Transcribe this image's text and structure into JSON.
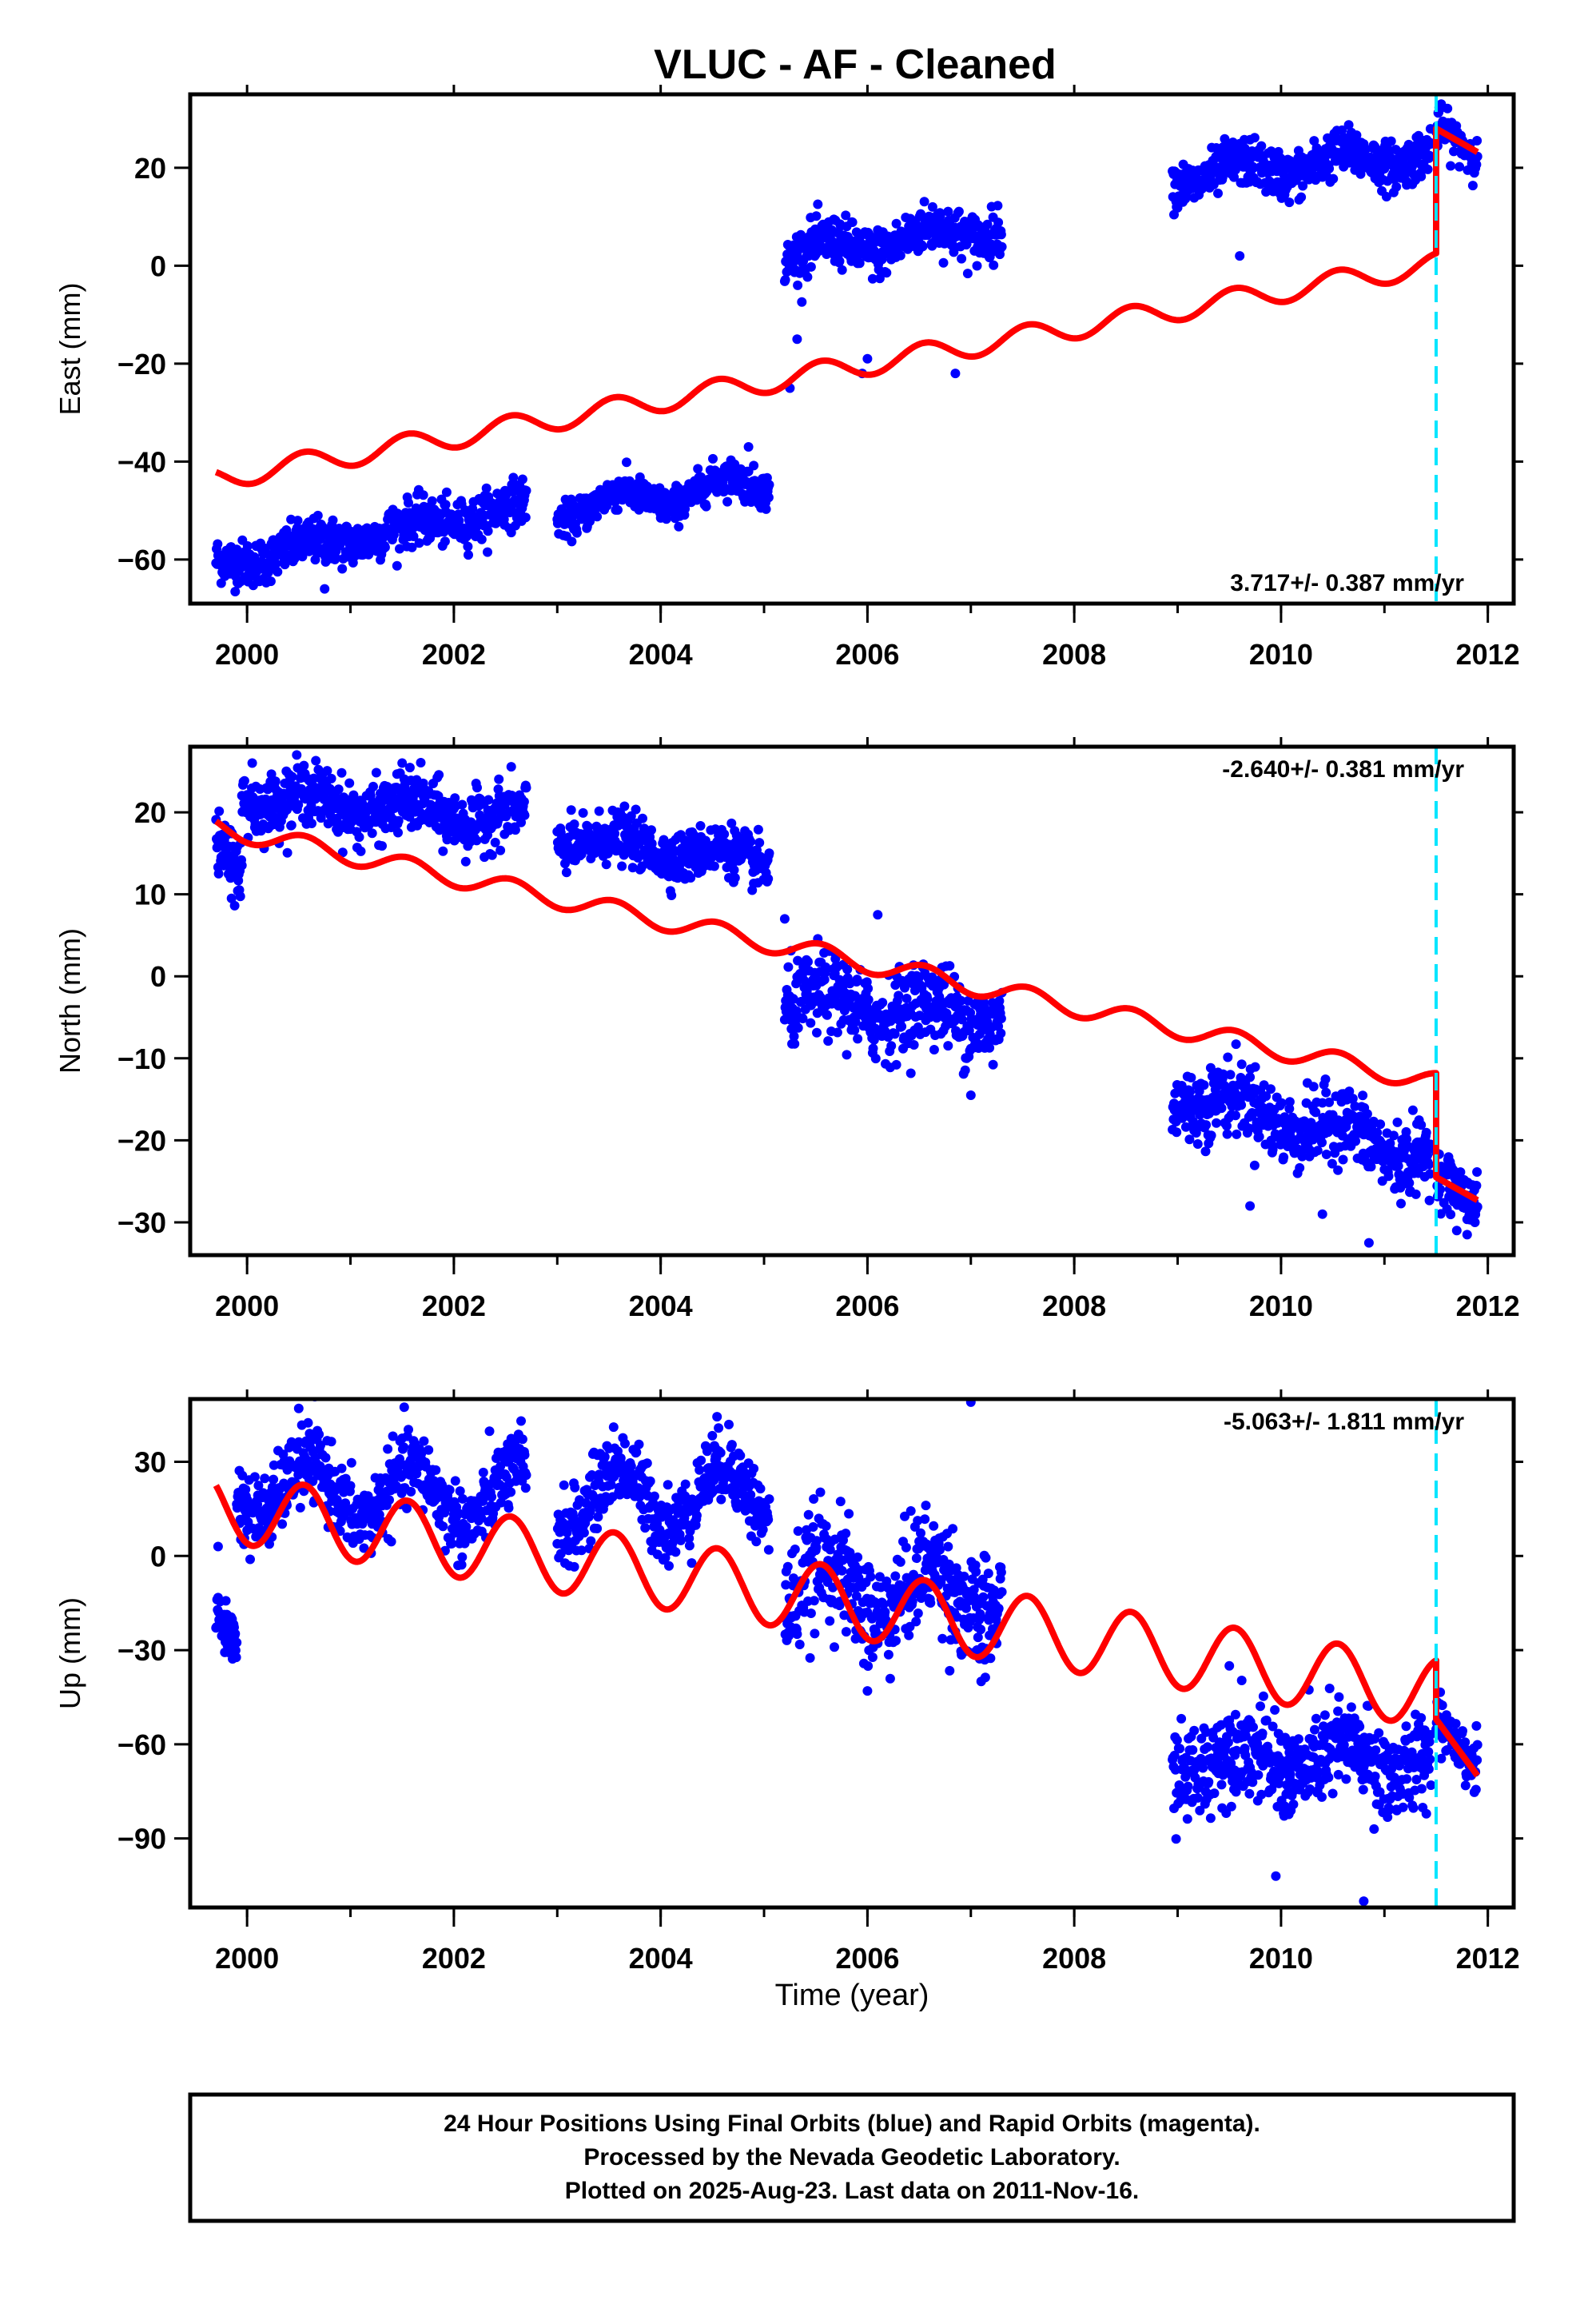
{
  "title": "VLUC  - AF - Cleaned",
  "caption": {
    "line1": "24 Hour Positions Using Final Orbits (blue) and Rapid Orbits (magenta).",
    "line2": "Processed by the Nevada Geodetic Laboratory.",
    "line3": "Plotted on 2025-Aug-23. Last data on 2011-Nov-16."
  },
  "colors": {
    "final_orbits": "#0000ff",
    "model": "#ff0000",
    "step_marker": "#00e5ff",
    "frame": "#000000"
  },
  "chart_data": [
    {
      "type": "scatter",
      "component": "East",
      "ylabel": "East (mm)",
      "xlabel": "",
      "xlim": [
        1999.45,
        2012.25
      ],
      "ylim": [
        -69,
        35
      ],
      "xticks": [
        2000,
        2002,
        2004,
        2006,
        2008,
        2010,
        2012
      ],
      "yticks": [
        -60,
        -40,
        -20,
        0,
        20
      ],
      "rate_label": "3.717+/- 0.387 mm/yr",
      "rate_position": "bottom-right",
      "step_epoch": 2011.5,
      "series": [
        {
          "role": "observations",
          "segments": [
            {
              "x0": 1999.7,
              "x1": 2002.7,
              "y0": -61,
              "y1": -49,
              "noise": 2.3,
              "amp": 1.2
            },
            {
              "x0": 2003.0,
              "x1": 2005.05,
              "y0": -50,
              "y1": -44,
              "noise": 1.8,
              "amp": 2.2
            },
            {
              "x0": 2005.2,
              "x1": 2007.3,
              "y0": 2,
              "y1": 8,
              "noise": 2.5,
              "amp": 2.0
            },
            {
              "x0": 2008.95,
              "x1": 2011.45,
              "y0": 18,
              "y1": 23,
              "noise": 2.4,
              "amp": 2.0
            },
            {
              "x0": 2011.5,
              "x1": 2011.9,
              "y0": 28,
              "y1": 22,
              "noise": 2.0,
              "amp": 0.5
            }
          ],
          "outliers": [
            [
              2005.25,
              -25
            ],
            [
              2005.32,
              -15
            ],
            [
              2005.95,
              -22
            ],
            [
              2006.0,
              -19
            ],
            [
              2006.85,
              -22
            ],
            [
              2000.75,
              -66
            ],
            [
              2004.85,
              -37
            ],
            [
              2009.6,
              2
            ],
            [
              2011.55,
              33
            ]
          ]
        },
        {
          "role": "model",
          "pieces": [
            {
              "x0": 1999.7,
              "x1": 2011.5,
              "y0": -43.5,
              "slope": 3.717,
              "amp": 2.3
            },
            {
              "x0": 2011.5,
              "x1": 2011.9,
              "y0": 28,
              "slope": -12,
              "amp": 0
            }
          ]
        }
      ]
    },
    {
      "type": "scatter",
      "component": "North",
      "ylabel": "North (mm)",
      "xlabel": "",
      "xlim": [
        1999.45,
        2012.25
      ],
      "ylim": [
        -34,
        28
      ],
      "xticks": [
        2000,
        2002,
        2004,
        2006,
        2008,
        2010,
        2012
      ],
      "yticks": [
        -30,
        -20,
        -10,
        0,
        10,
        20
      ],
      "rate_label": "-2.640+/- 0.381 mm/yr",
      "rate_position": "top-right",
      "step_epoch": 2011.5,
      "series": [
        {
          "role": "observations",
          "segments": [
            {
              "x0": 1999.7,
              "x1": 1999.95,
              "y0": 16,
              "y1": 13,
              "noise": 2.0,
              "amp": 0
            },
            {
              "x0": 1999.95,
              "x1": 2002.7,
              "y0": 22,
              "y1": 19,
              "noise": 1.8,
              "amp": 1.2
            },
            {
              "x0": 2003.0,
              "x1": 2005.05,
              "y0": 17,
              "y1": 14,
              "noise": 1.5,
              "amp": 1.0
            },
            {
              "x0": 2005.2,
              "x1": 2007.3,
              "y0": -3,
              "y1": -5,
              "noise": 2.5,
              "amp": 1.5
            },
            {
              "x0": 2008.95,
              "x1": 2011.45,
              "y0": -14,
              "y1": -22,
              "noise": 2.2,
              "amp": 1.5
            },
            {
              "x0": 2011.5,
              "x1": 2011.9,
              "y0": -24,
              "y1": -28,
              "noise": 1.5,
              "amp": 0
            }
          ],
          "outliers": [
            [
              1999.85,
              9.5
            ],
            [
              2000.05,
              26
            ],
            [
              2001.5,
              26
            ],
            [
              2005.2,
              7
            ],
            [
              2006.1,
              7.5
            ],
            [
              2007.0,
              -14.5
            ],
            [
              2009.7,
              -28
            ],
            [
              2010.4,
              -29
            ],
            [
              2010.85,
              -32.5
            ],
            [
              2011.7,
              -31
            ],
            [
              2011.8,
              -31.5
            ]
          ]
        },
        {
          "role": "model",
          "pieces": [
            {
              "x0": 1999.7,
              "x1": 2011.5,
              "y0": 18.2,
              "slope": -2.64,
              "amp": 1.2
            },
            {
              "x0": 2011.5,
              "x1": 2011.9,
              "y0": -24.5,
              "slope": -7,
              "amp": 0
            }
          ]
        }
      ]
    },
    {
      "type": "scatter",
      "component": "Up",
      "ylabel": "Up (mm)",
      "xlabel": "Time (year)",
      "xlim": [
        1999.45,
        2012.25
      ],
      "ylim": [
        -112,
        50
      ],
      "xticks": [
        2000,
        2002,
        2004,
        2006,
        2008,
        2010,
        2012
      ],
      "yticks": [
        -90,
        -60,
        -30,
        0,
        30
      ],
      "rate_label": "-5.063+/- 1.811 mm/yr",
      "rate_position": "top-right",
      "step_epoch": 2011.5,
      "series": [
        {
          "role": "observations",
          "segments": [
            {
              "x0": 1999.7,
              "x1": 1999.9,
              "y0": -18,
              "y1": -28,
              "noise": 4.5,
              "amp": 0
            },
            {
              "x0": 1999.9,
              "x1": 2002.7,
              "y0": 22,
              "y1": 18,
              "noise": 6.0,
              "amp": 9.0
            },
            {
              "x0": 2003.0,
              "x1": 2005.05,
              "y0": 18,
              "y1": 20,
              "noise": 6.0,
              "amp": 10.0
            },
            {
              "x0": 2005.2,
              "x1": 2007.3,
              "y0": -10,
              "y1": -12,
              "noise": 9.0,
              "amp": 9.0
            },
            {
              "x0": 2008.95,
              "x1": 2011.45,
              "y0": -65,
              "y1": -65,
              "noise": 7.5,
              "amp": 5.0
            },
            {
              "x0": 2011.5,
              "x1": 2011.9,
              "y0": -50,
              "y1": -68,
              "noise": 4.5,
              "amp": 0
            }
          ],
          "outliers": [
            [
              1999.72,
              3
            ],
            [
              2000.5,
              47
            ],
            [
              2002.65,
              43
            ],
            [
              2007.0,
              49
            ],
            [
              2006.0,
              -43
            ],
            [
              2007.1,
              -40
            ],
            [
              2009.5,
              -35
            ],
            [
              2009.95,
              -102
            ],
            [
              2010.8,
              -110
            ],
            [
              2010.9,
              -87
            ]
          ]
        },
        {
          "role": "model",
          "pieces": [
            {
              "x0": 1999.7,
              "x1": 2011.5,
              "y0": 16,
              "slope": -5.063,
              "amp": 11
            },
            {
              "x0": 2011.5,
              "x1": 2011.9,
              "y0": -52,
              "slope": -45,
              "amp": 0
            }
          ]
        }
      ]
    }
  ]
}
